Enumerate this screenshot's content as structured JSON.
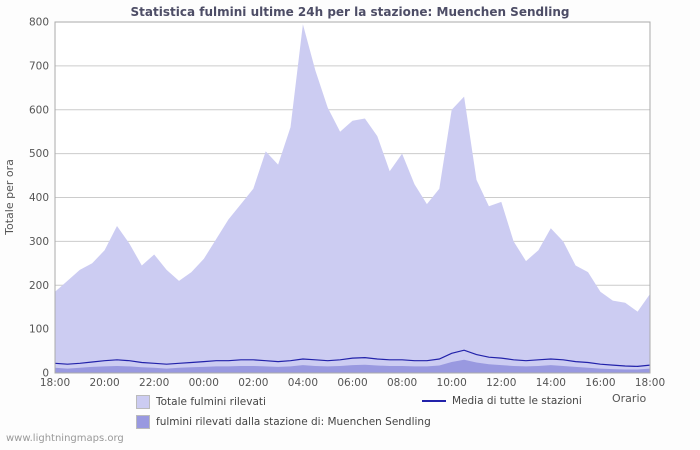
{
  "page": {
    "watermark": "www.lightningmaps.org"
  },
  "chart_data": {
    "type": "area",
    "title": "Statistica fulmini ultime 24h per la stazione: Muenchen Sendling",
    "xlabel": "Orario",
    "ylabel": "Totale per ora",
    "ylim": [
      0,
      800
    ],
    "yticks": [
      0,
      100,
      200,
      300,
      400,
      500,
      600,
      700,
      800
    ],
    "xtick_hours": [
      0,
      2,
      4,
      6,
      8,
      10,
      12,
      14,
      16,
      18,
      20,
      22,
      24
    ],
    "xtick_labels": [
      "18:00",
      "20:00",
      "22:00",
      "00:00",
      "02:00",
      "04:00",
      "06:00",
      "08:00",
      "10:00",
      "12:00",
      "14:00",
      "16:00",
      "18:00"
    ],
    "x_hours": [
      0,
      0.5,
      1,
      1.5,
      2,
      2.5,
      3,
      3.5,
      4,
      4.5,
      5,
      5.5,
      6,
      6.5,
      7,
      7.5,
      8,
      8.5,
      9,
      9.5,
      10,
      10.5,
      11,
      11.5,
      12,
      12.5,
      13,
      13.5,
      14,
      14.5,
      15,
      15.5,
      16,
      16.5,
      17,
      17.5,
      18,
      18.5,
      19,
      19.5,
      20,
      20.5,
      21,
      21.5,
      22,
      22.5,
      23,
      23.5,
      24
    ],
    "grid": true,
    "legend_position": "bottom",
    "colors": {
      "grid": "#cccccc",
      "border": "#aaaaaa",
      "tick_text": "#555555",
      "title_text": "#4d4d66",
      "plot_bg": "#ffffff"
    },
    "series": [
      {
        "name": "Totale fulmini rilevati",
        "type": "area",
        "color": "#ccccf2",
        "values": [
          185,
          210,
          235,
          250,
          280,
          335,
          295,
          245,
          270,
          235,
          210,
          230,
          260,
          305,
          350,
          385,
          420,
          505,
          475,
          560,
          795,
          690,
          605,
          550,
          575,
          580,
          540,
          460,
          500,
          430,
          385,
          420,
          600,
          630,
          440,
          380,
          390,
          300,
          255,
          280,
          330,
          300,
          245,
          230,
          185,
          165,
          160,
          140,
          180
        ]
      },
      {
        "name": "fulmini rilevati dalla stazione di: Muenchen Sendling",
        "type": "area",
        "color": "#9999e0",
        "values": [
          12,
          10,
          12,
          14,
          15,
          16,
          15,
          13,
          12,
          10,
          12,
          13,
          14,
          15,
          15,
          16,
          16,
          15,
          14,
          15,
          18,
          16,
          15,
          16,
          18,
          19,
          17,
          16,
          16,
          15,
          15,
          17,
          25,
          30,
          24,
          20,
          18,
          16,
          15,
          16,
          18,
          16,
          14,
          12,
          10,
          9,
          8,
          8,
          10
        ]
      },
      {
        "name": "Media di tutte le stazioni",
        "type": "line",
        "color": "#2222aa",
        "values": [
          22,
          20,
          22,
          25,
          28,
          30,
          28,
          24,
          22,
          20,
          22,
          24,
          26,
          28,
          28,
          30,
          30,
          28,
          26,
          28,
          32,
          30,
          28,
          30,
          34,
          35,
          32,
          30,
          30,
          28,
          28,
          32,
          45,
          52,
          42,
          36,
          34,
          30,
          28,
          30,
          32,
          30,
          26,
          24,
          20,
          18,
          16,
          15,
          18
        ]
      }
    ]
  }
}
